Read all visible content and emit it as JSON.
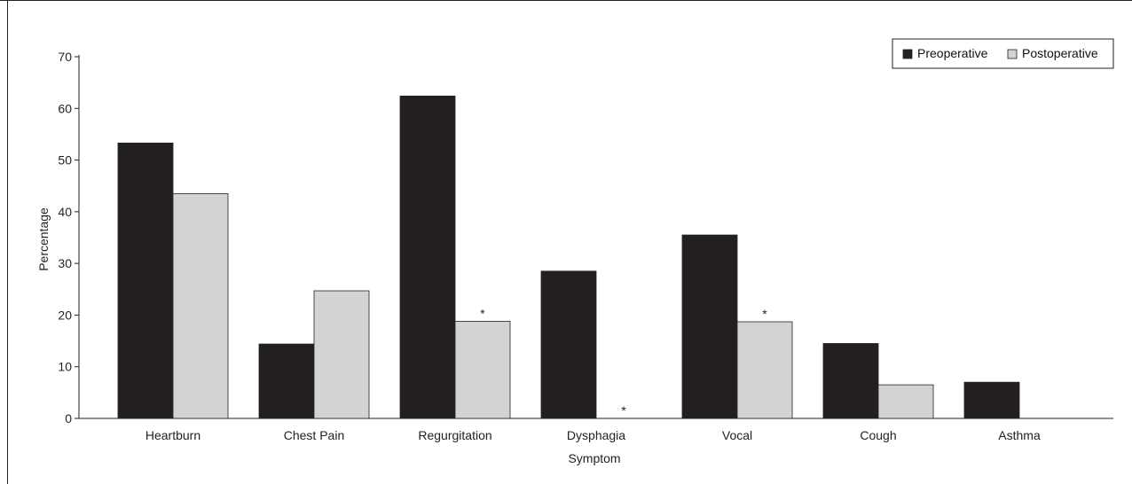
{
  "chart_data": {
    "type": "bar",
    "title": "",
    "xlabel": "Symptom",
    "ylabel": "Percentage",
    "ylim": [
      0,
      70
    ],
    "yticks": [
      0,
      10,
      20,
      30,
      40,
      50,
      60,
      70
    ],
    "categories": [
      "Heartburn",
      "Chest Pain",
      "Regurgitation",
      "Dysphagia",
      "Vocal",
      "Cough",
      "Asthma"
    ],
    "series": [
      {
        "name": "Preoperative",
        "color": "#231f20",
        "values": [
          53.3,
          14.4,
          62.4,
          28.5,
          35.5,
          14.5,
          7.0
        ]
      },
      {
        "name": "Postoperative",
        "color": "#d1d3d4",
        "values": [
          43.5,
          24.7,
          18.8,
          0,
          18.7,
          6.5,
          0
        ]
      }
    ],
    "significance_marker": "*",
    "significant_postoperative": [
      "Regurgitation",
      "Dysphagia",
      "Vocal"
    ],
    "legend_position": "top-right",
    "grid": false
  }
}
